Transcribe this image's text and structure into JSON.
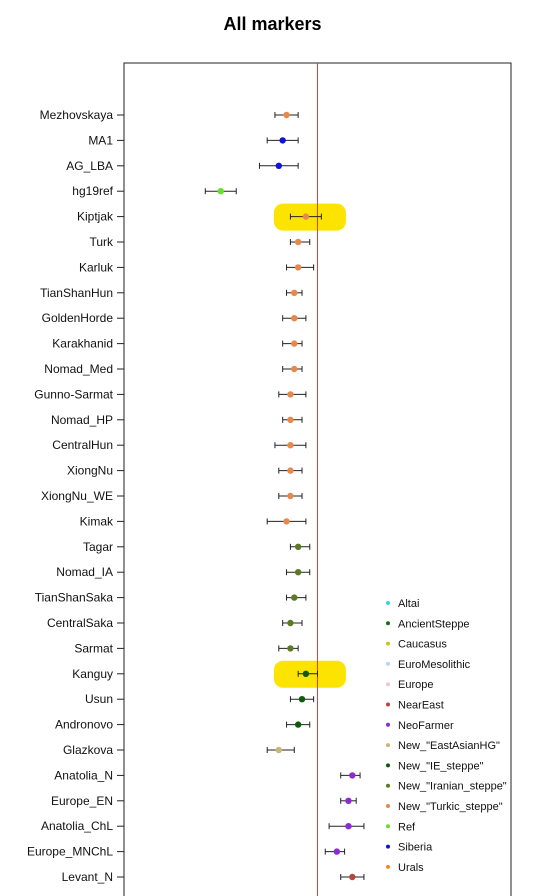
{
  "chart_data": {
    "type": "scatter",
    "title": "All markers",
    "xlim": [
      0,
      1
    ],
    "reference_line_x": 0.5,
    "grid": false,
    "legend_position": "bottom-right",
    "categories": [
      "Mezhovskaya",
      "MA1",
      "AG_LBA",
      "hg19ref",
      "Kiptjak",
      "Turk",
      "Karluk",
      "TianShanHun",
      "GoldenHorde",
      "Karakhanid",
      "Nomad_Med",
      "Gunno-Sarmat",
      "Nomad_HP",
      "CentralHun",
      "XiongNu",
      "XiongNu_WE",
      "Kimak",
      "Tagar",
      "Nomad_IA",
      "TianShanSaka",
      "CentralSaka",
      "Sarmat",
      "Kanguy",
      "Usun",
      "Andronovo",
      "Glazkova",
      "Anatolia_N",
      "Europe_EN",
      "Anatolia_ChL",
      "Europe_MNChL",
      "Levant_N"
    ],
    "points": [
      {
        "label": "Mezhovskaya",
        "group": "New_\"Turkic_steppe\"",
        "x": 0.42,
        "lo": 0.39,
        "hi": 0.45
      },
      {
        "label": "MA1",
        "group": "Siberia",
        "x": 0.41,
        "lo": 0.37,
        "hi": 0.45
      },
      {
        "label": "AG_LBA",
        "group": "Siberia",
        "x": 0.4,
        "lo": 0.35,
        "hi": 0.45
      },
      {
        "label": "hg19ref",
        "group": "Ref",
        "x": 0.25,
        "lo": 0.21,
        "hi": 0.29
      },
      {
        "label": "Kiptjak",
        "group": "New_\"Turkic_steppe\"",
        "x": 0.47,
        "lo": 0.43,
        "hi": 0.51
      },
      {
        "label": "Turk",
        "group": "New_\"Turkic_steppe\"",
        "x": 0.45,
        "lo": 0.43,
        "hi": 0.48
      },
      {
        "label": "Karluk",
        "group": "New_\"Turkic_steppe\"",
        "x": 0.45,
        "lo": 0.42,
        "hi": 0.49
      },
      {
        "label": "TianShanHun",
        "group": "New_\"Turkic_steppe\"",
        "x": 0.44,
        "lo": 0.42,
        "hi": 0.46
      },
      {
        "label": "GoldenHorde",
        "group": "New_\"Turkic_steppe\"",
        "x": 0.44,
        "lo": 0.41,
        "hi": 0.47
      },
      {
        "label": "Karakhanid",
        "group": "New_\"Turkic_steppe\"",
        "x": 0.44,
        "lo": 0.41,
        "hi": 0.46
      },
      {
        "label": "Nomad_Med",
        "group": "New_\"Turkic_steppe\"",
        "x": 0.44,
        "lo": 0.41,
        "hi": 0.46
      },
      {
        "label": "Gunno-Sarmat",
        "group": "New_\"Turkic_steppe\"",
        "x": 0.43,
        "lo": 0.4,
        "hi": 0.47
      },
      {
        "label": "Nomad_HP",
        "group": "New_\"Turkic_steppe\"",
        "x": 0.43,
        "lo": 0.41,
        "hi": 0.46
      },
      {
        "label": "CentralHun",
        "group": "New_\"Turkic_steppe\"",
        "x": 0.43,
        "lo": 0.39,
        "hi": 0.47
      },
      {
        "label": "XiongNu",
        "group": "New_\"Turkic_steppe\"",
        "x": 0.43,
        "lo": 0.4,
        "hi": 0.46
      },
      {
        "label": "XiongNu_WE",
        "group": "New_\"Turkic_steppe\"",
        "x": 0.43,
        "lo": 0.4,
        "hi": 0.46
      },
      {
        "label": "Kimak",
        "group": "New_\"Turkic_steppe\"",
        "x": 0.42,
        "lo": 0.37,
        "hi": 0.47
      },
      {
        "label": "Tagar",
        "group": "New_\"Iranian_steppe\"",
        "x": 0.45,
        "lo": 0.43,
        "hi": 0.48
      },
      {
        "label": "Nomad_IA",
        "group": "New_\"Iranian_steppe\"",
        "x": 0.45,
        "lo": 0.42,
        "hi": 0.48
      },
      {
        "label": "TianShanSaka",
        "group": "New_\"Iranian_steppe\"",
        "x": 0.44,
        "lo": 0.42,
        "hi": 0.47
      },
      {
        "label": "CentralSaka",
        "group": "New_\"Iranian_steppe\"",
        "x": 0.43,
        "lo": 0.41,
        "hi": 0.46
      },
      {
        "label": "Sarmat",
        "group": "New_\"Iranian_steppe\"",
        "x": 0.43,
        "lo": 0.4,
        "hi": 0.45
      },
      {
        "label": "Kanguy",
        "group": "New_\"IE_steppe\"",
        "x": 0.47,
        "lo": 0.45,
        "hi": 0.5
      },
      {
        "label": "Usun",
        "group": "New_\"IE_steppe\"",
        "x": 0.46,
        "lo": 0.43,
        "hi": 0.49
      },
      {
        "label": "Andronovo",
        "group": "New_\"IE_steppe\"",
        "x": 0.45,
        "lo": 0.42,
        "hi": 0.48
      },
      {
        "label": "Glazkova",
        "group": "New_\"EastAsianHG\"",
        "x": 0.4,
        "lo": 0.37,
        "hi": 0.44
      },
      {
        "label": "Anatolia_N",
        "group": "NeoFarmer",
        "x": 0.59,
        "lo": 0.56,
        "hi": 0.61
      },
      {
        "label": "Europe_EN",
        "group": "NeoFarmer",
        "x": 0.58,
        "lo": 0.56,
        "hi": 0.6
      },
      {
        "label": "Anatolia_ChL",
        "group": "NeoFarmer",
        "x": 0.58,
        "lo": 0.53,
        "hi": 0.62
      },
      {
        "label": "Europe_MNChL",
        "group": "NeoFarmer",
        "x": 0.55,
        "lo": 0.52,
        "hi": 0.57
      },
      {
        "label": "Levant_N",
        "group": "NearEast",
        "x": 0.59,
        "lo": 0.56,
        "hi": 0.62
      }
    ],
    "highlighted": [
      "Kiptjak",
      "Kanguy"
    ],
    "highlight_color": "#fde400",
    "reference_line_color": "#e83c3c",
    "legend": [
      {
        "name": "Altai",
        "color": "#33d6e0"
      },
      {
        "name": "AncientSteppe",
        "color": "#1a6e1a"
      },
      {
        "name": "Caucasus",
        "color": "#c3c81e"
      },
      {
        "name": "EuroMesolithic",
        "color": "#b6d8e6"
      },
      {
        "name": "Europe",
        "color": "#f6c4cf"
      },
      {
        "name": "NearEast",
        "color": "#b3473c"
      },
      {
        "name": "NeoFarmer",
        "color": "#8c2bd1"
      },
      {
        "name": "New_\"EastAsianHG\"",
        "color": "#c9b47a"
      },
      {
        "name": "New_\"IE_steppe\"",
        "color": "#0f5a0f"
      },
      {
        "name": "New_\"Iranian_steppe\"",
        "color": "#5c7a24"
      },
      {
        "name": "New_\"Turkic_steppe\"",
        "color": "#e8884a"
      },
      {
        "name": "Ref",
        "color": "#66e02b"
      },
      {
        "name": "Siberia",
        "color": "#1111d9"
      },
      {
        "name": "Urals",
        "color": "#f08a2a"
      }
    ]
  }
}
